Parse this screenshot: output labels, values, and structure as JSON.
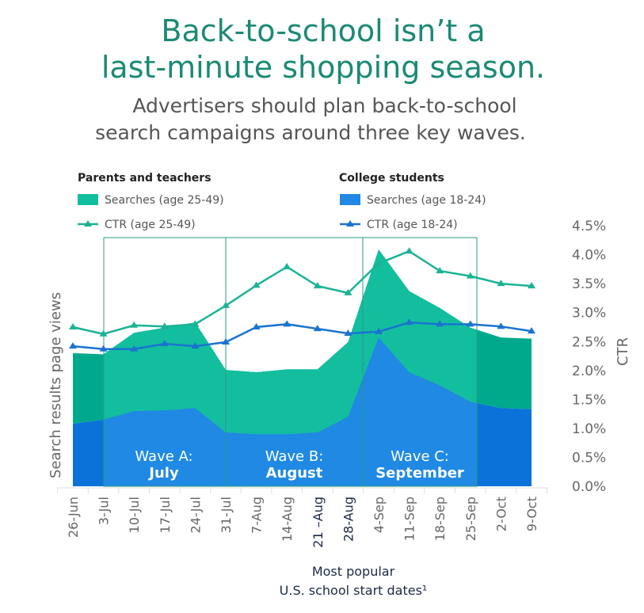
{
  "title": [
    "Back-to-school isn’t a",
    "last-minute shopping season."
  ],
  "subtitle": [
    "Advertisers should plan back-to-school",
    "search campaigns around three key waves."
  ],
  "legend": {
    "group_left": {
      "heading": "Parents and teachers",
      "searches": "Searches (age 25-49)",
      "ctr": "CTR (age 25-49)"
    },
    "group_right": {
      "heading": "College students",
      "searches": "Searches (age 18-24)",
      "ctr": "CTR (age 18-24)"
    }
  },
  "colors": {
    "teal_area_dark": "#00a98b",
    "teal_area_light": "#13be9f",
    "blue_area_dark": "#0a72d8",
    "blue_area_light": "#1f89e3",
    "teal_line": "#1ab394",
    "blue_line": "#1a73d0",
    "title": "#1b8a73"
  },
  "chart_data": {
    "type": "area",
    "x": [
      "26-Jun",
      "3-Jul",
      "10-Jul",
      "17-Jul",
      "24-Jul",
      "31-Jul",
      "7-Aug",
      "14-Aug",
      "21 –Aug",
      "28-Aug",
      "4-Sep",
      "11-Sep",
      "18-Sep",
      "25-Sep",
      "2-Oct",
      "9-Oct"
    ],
    "highlighted_x": [
      "21 –Aug",
      "28-Aug"
    ],
    "xlabel": [
      "Most popular",
      "U.S. school start dates¹"
    ],
    "ylabel_left": "Search results page views",
    "ylabel_right": "CTR",
    "right_ticks": [
      "0.0%",
      "0.5%",
      "1.0%",
      "1.5%",
      "2.0%",
      "2.5%",
      "3.0%",
      "3.5%",
      "4.0%",
      "4.5%"
    ],
    "ylim_right": [
      0,
      4.5
    ],
    "series": [
      {
        "name": "Searches (age 25-49)",
        "kind": "stacked-area",
        "values": [
          1.22,
          1.13,
          1.35,
          1.43,
          1.48,
          1.08,
          1.07,
          1.12,
          1.09,
          1.29,
          1.52,
          1.4,
          1.34,
          1.28,
          1.22,
          1.22
        ]
      },
      {
        "name": "Searches (age 18-24)",
        "kind": "stacked-area",
        "values": [
          1.08,
          1.15,
          1.3,
          1.31,
          1.35,
          0.93,
          0.9,
          0.9,
          0.93,
          1.2,
          2.57,
          1.97,
          1.74,
          1.46,
          1.35,
          1.33
        ]
      },
      {
        "name": "CTR (age 25-49)",
        "kind": "line",
        "values": [
          2.75,
          2.63,
          2.78,
          2.76,
          2.8,
          3.12,
          3.47,
          3.79,
          3.46,
          3.34,
          3.85,
          4.06,
          3.72,
          3.63,
          3.5,
          3.46
        ]
      },
      {
        "name": "CTR (age 18-24)",
        "kind": "line",
        "values": [
          2.42,
          2.37,
          2.37,
          2.46,
          2.42,
          2.49,
          2.75,
          2.8,
          2.72,
          2.64,
          2.67,
          2.83,
          2.8,
          2.8,
          2.76,
          2.68
        ]
      }
    ],
    "waves": [
      {
        "label": "Wave A:",
        "month": "July"
      },
      {
        "label": "Wave B:",
        "month": "August"
      },
      {
        "label": "Wave C:",
        "month": "September"
      }
    ]
  }
}
